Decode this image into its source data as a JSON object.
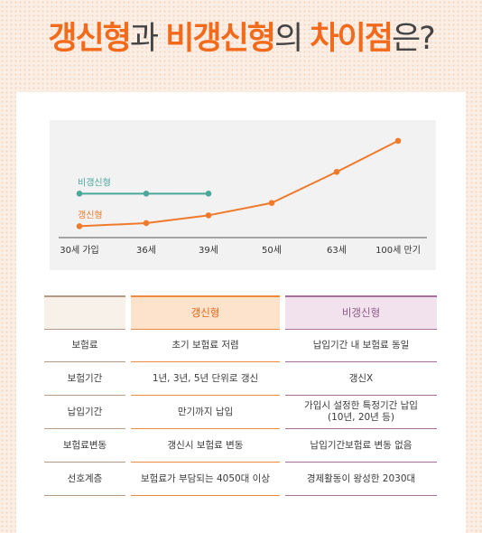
{
  "title": {
    "word1": "갱신형",
    "particle1": "과 ",
    "word2": "비갱신형",
    "particle2": "의 ",
    "word3": "차이점",
    "particle3": "은?"
  },
  "colors": {
    "accent": "#f26a1b",
    "renewable_line": "#f07a2c",
    "nonrenewable_line": "#4aa89a",
    "renewable_header": "#fde3cb",
    "nonrenewable_header": "#f2e2ee"
  },
  "chart_data": {
    "type": "line",
    "categories": [
      "30세 가입",
      "36세",
      "39세",
      "50세",
      "63세",
      "100세 만기"
    ],
    "series": [
      {
        "name": "갱신형",
        "values": [
          1,
          1.4,
          2.4,
          4,
          8,
          12
        ]
      },
      {
        "name": "비갱신형",
        "values": [
          5.2,
          5.2,
          5.2,
          null,
          null,
          null
        ]
      }
    ],
    "ylim": [
      0,
      13.5
    ],
    "grid": false,
    "legend": "inline-labels"
  },
  "table": {
    "headers": [
      "",
      "갱신형",
      "비갱신형"
    ],
    "rows": [
      {
        "label": "보험료",
        "renewable": "초기 보험료 저렴",
        "nonrenewable": "납입기간 내 보험료 동일"
      },
      {
        "label": "보험기간",
        "renewable": "1년, 3년, 5년 단위로 갱신",
        "nonrenewable": "갱신X"
      },
      {
        "label": "납입기간",
        "renewable": "만기까지 납입",
        "nonrenewable": "가입시 설정한 특정기간 납입\n(10년, 20년 등)"
      },
      {
        "label": "보험료변동",
        "renewable": "갱신시 보험료 변동",
        "nonrenewable": "납입기간보험료 변동 없음"
      },
      {
        "label": "선호계층",
        "renewable": "보험료가 부담되는 4050대 이상",
        "nonrenewable": "경제활동이 왕성한 2030대"
      }
    ]
  }
}
